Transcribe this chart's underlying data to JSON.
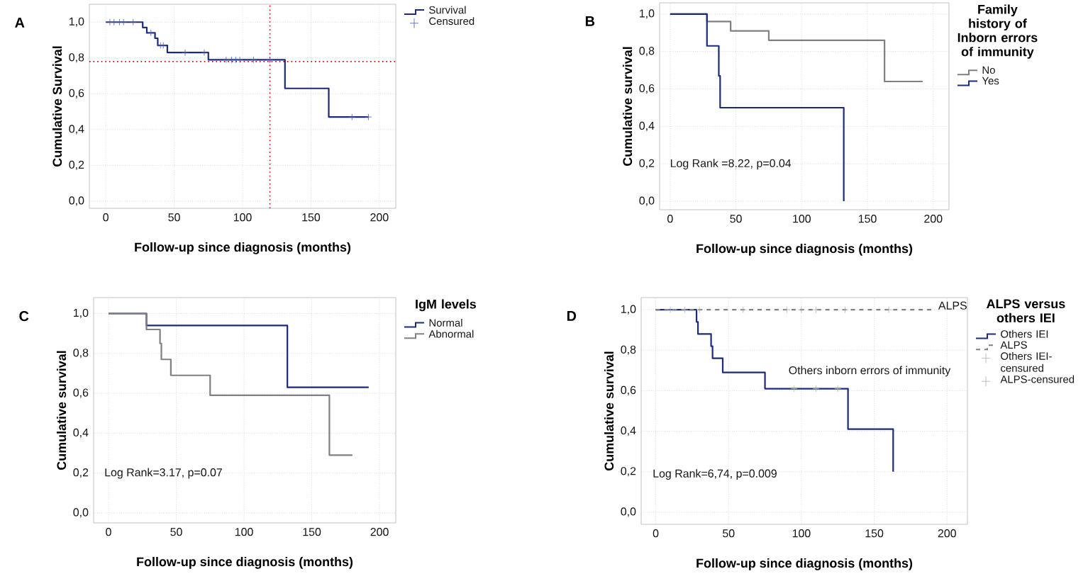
{
  "chart_data": [
    {
      "type": "step",
      "title": "A",
      "xlabel": "Follow-up since diagnosis (months)",
      "ylabel": "Cumulative Survival",
      "xlim": [
        -12,
        212
      ],
      "ylim": [
        -0.04,
        1.1
      ],
      "xticks": [
        0,
        50,
        100,
        150,
        200
      ],
      "yticks": [
        {
          "value": 0,
          "label": "0,0"
        },
        {
          "value": 0.2,
          "label": "0,2"
        },
        {
          "value": 0.4,
          "label": "0,4"
        },
        {
          "value": 0.6,
          "label": "0,6"
        },
        {
          "value": 0.8,
          "label": "0,8"
        },
        {
          "value": 1,
          "label": "1,0"
        }
      ],
      "grid": true,
      "legend": "top right",
      "series": [
        {
          "name": "Survival",
          "color": "#1c2a7e",
          "x": [
            0,
            27,
            30,
            36,
            38,
            45,
            75,
            131,
            163,
            192
          ],
          "values": [
            1.0,
            0.97,
            0.94,
            0.91,
            0.87,
            0.83,
            0.79,
            0.63,
            0.47,
            0.47
          ]
        },
        {
          "name": "Censured",
          "type": "scatter",
          "marker": "cross",
          "color": "#4a5aa8",
          "x": [
            3,
            6,
            10,
            13,
            20,
            33,
            40,
            42,
            58,
            72,
            88,
            92,
            95,
            98,
            108,
            120,
            180,
            192
          ],
          "values": [
            1.0,
            1.0,
            1.0,
            1.0,
            1.0,
            0.94,
            0.87,
            0.87,
            0.83,
            0.83,
            0.79,
            0.79,
            0.79,
            0.79,
            0.79,
            0.79,
            0.47,
            0.47
          ]
        }
      ],
      "ref_lines": [
        {
          "axis": "y",
          "value": 0.78,
          "color": "#cc0000",
          "line_style": "dotted"
        },
        {
          "axis": "x",
          "value": 120,
          "color": "#cc0000",
          "line_style": "dotted"
        }
      ]
    },
    {
      "type": "step",
      "title": "B",
      "xlabel": "Follow-up since diagnosis (months)",
      "ylabel": "Cumulative survival",
      "xlim": [
        -8,
        212
      ],
      "ylim": [
        -0.045,
        1.06
      ],
      "xticks": [
        0,
        50,
        100,
        150,
        200
      ],
      "yticks": [
        {
          "value": 0,
          "label": "0,0"
        },
        {
          "value": 0.2,
          "label": "0,2"
        },
        {
          "value": 0.4,
          "label": "0,4"
        },
        {
          "value": 0.6,
          "label": "0,6"
        },
        {
          "value": 0.8,
          "label": "0,8"
        },
        {
          "value": 1,
          "label": "1,0"
        }
      ],
      "grid": true,
      "legend": "top right",
      "legend_title": "Family history of Inborn errors of immunity",
      "annotations": [
        "Log Rank =8.22, p=0.04"
      ],
      "series": [
        {
          "name": "No",
          "color": "#808080",
          "x": [
            0,
            28,
            46,
            75,
            163,
            192
          ],
          "values": [
            1.0,
            0.96,
            0.91,
            0.86,
            0.64,
            0.64
          ]
        },
        {
          "name": "Yes",
          "color": "#1c2a7e",
          "x": [
            0,
            28,
            37,
            38,
            132
          ],
          "values": [
            1.0,
            0.83,
            0.67,
            0.5,
            0.0
          ]
        }
      ]
    },
    {
      "type": "step",
      "title": "C",
      "xlabel": "Follow-up since diagnosis (months)",
      "ylabel": "Cumulative survival",
      "xlim": [
        -11,
        212
      ],
      "ylim": [
        -0.05,
        1.08
      ],
      "xticks": [
        0,
        50,
        100,
        150,
        200
      ],
      "yticks": [
        {
          "value": 0,
          "label": "0,0"
        },
        {
          "value": 0.2,
          "label": "0,2"
        },
        {
          "value": 0.4,
          "label": "0,4"
        },
        {
          "value": 0.6,
          "label": "0,6"
        },
        {
          "value": 0.8,
          "label": "0,8"
        },
        {
          "value": 1,
          "label": "1,0"
        }
      ],
      "grid": true,
      "legend": "top right",
      "legend_title": "IgM levels",
      "annotations": [
        "Log Rank=3.17, p=0.07"
      ],
      "series": [
        {
          "name": "Normal",
          "color": "#1c2a7e",
          "x": [
            0,
            28,
            132,
            192
          ],
          "values": [
            1.0,
            0.94,
            0.63,
            0.63
          ]
        },
        {
          "name": "Abnormal",
          "color": "#808080",
          "x": [
            0,
            28,
            38,
            39,
            46,
            75,
            163,
            180
          ],
          "values": [
            1.0,
            0.92,
            0.85,
            0.77,
            0.69,
            0.59,
            0.29,
            0.29
          ]
        }
      ]
    },
    {
      "type": "step",
      "title": "D",
      "xlabel": "Follow-up since diagnosis (months)",
      "ylabel": "Cumulative survival",
      "xlim": [
        -10,
        214
      ],
      "ylim": [
        -0.06,
        1.06
      ],
      "xticks": [
        0,
        50,
        100,
        150,
        200
      ],
      "yticks": [
        {
          "value": 0,
          "label": "0,0"
        },
        {
          "value": 0.2,
          "label": "0,2"
        },
        {
          "value": 0.4,
          "label": "0,4"
        },
        {
          "value": 0.6,
          "label": "0,6"
        },
        {
          "value": 0.8,
          "label": "0,8"
        },
        {
          "value": 1,
          "label": "1,0"
        }
      ],
      "grid": true,
      "legend": "top right",
      "legend_title": "ALPS versus others IEI",
      "annotations": [
        "Log Rank=6,74, p=0.009",
        "Others inborn errors of immunity",
        "ALPS"
      ],
      "series": [
        {
          "name": "Others IEI",
          "color": "#1c2a7e",
          "x": [
            0,
            28,
            29,
            38,
            39,
            46,
            75,
            132,
            163
          ],
          "values": [
            1.0,
            0.94,
            0.88,
            0.82,
            0.76,
            0.69,
            0.61,
            0.41,
            0.2
          ]
        },
        {
          "name": "ALPS",
          "color": "#808080",
          "line_style": "dashed",
          "x": [
            0,
            190
          ],
          "values": [
            1.0,
            1.0
          ]
        },
        {
          "name": "Others IEI-censured",
          "type": "scatter",
          "marker": "cross",
          "color": "#b0b0b0",
          "x": [
            95,
            110,
            125
          ],
          "values": [
            0.61,
            0.61,
            0.61
          ]
        },
        {
          "name": "ALPS-censured",
          "type": "scatter",
          "marker": "cross",
          "color": "#b0b0b0",
          "x": [
            10,
            20,
            30,
            60,
            90,
            100,
            110,
            130,
            160
          ],
          "values": [
            1.0,
            1.0,
            1.0,
            1.0,
            1.0,
            1.0,
            1.0,
            1.0,
            1.0
          ]
        }
      ]
    }
  ]
}
